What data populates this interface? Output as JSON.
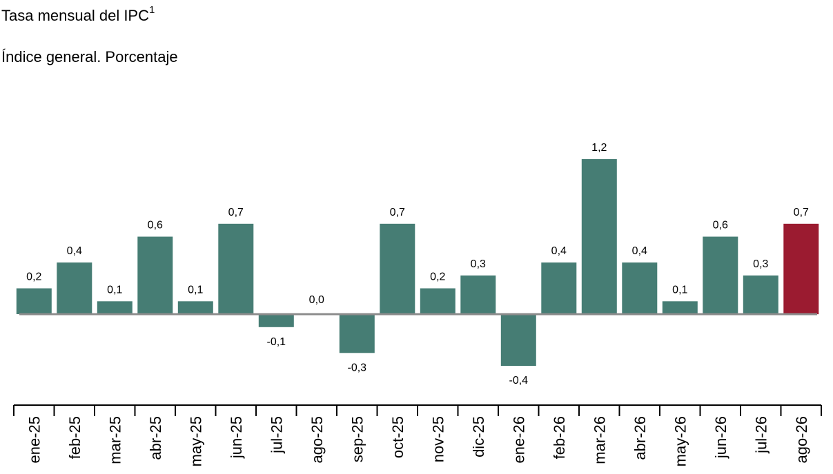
{
  "chart_data": {
    "type": "bar",
    "title": "Tasa mensual del IPC",
    "title_superscript": "1",
    "subtitle": "Índice general. Porcentaje",
    "categories": [
      "ene-25",
      "feb-25",
      "mar-25",
      "abr-25",
      "may-25",
      "jun-25",
      "jul-25",
      "ago-25",
      "sep-25",
      "oct-25",
      "nov-25",
      "dic-25",
      "ene-26",
      "feb-26",
      "mar-26",
      "abr-26",
      "may-26",
      "jun-26",
      "jul-26",
      "ago-26"
    ],
    "values": [
      0.2,
      0.4,
      0.1,
      0.6,
      0.1,
      0.7,
      -0.1,
      0.0,
      -0.3,
      0.7,
      0.2,
      0.3,
      -0.4,
      0.4,
      1.2,
      0.4,
      0.1,
      0.6,
      0.3,
      0.7
    ],
    "value_labels": [
      "0,2",
      "0,4",
      "0,1",
      "0,6",
      "0,1",
      "0,7",
      "-0,1",
      "0,0",
      "-0,3",
      "0,7",
      "0,2",
      "0,3",
      "-0,4",
      "0,4",
      "1,2",
      "0,4",
      "0,1",
      "0,6",
      "0,3",
      "0,7"
    ],
    "highlight_index": 19,
    "colors": {
      "bar": "#467d74",
      "highlight": "#9b1b30",
      "zero_line": "#8c8c8c",
      "axis": "#000000"
    },
    "grid": false,
    "legend": "none",
    "xlabel": "",
    "ylabel": ""
  }
}
